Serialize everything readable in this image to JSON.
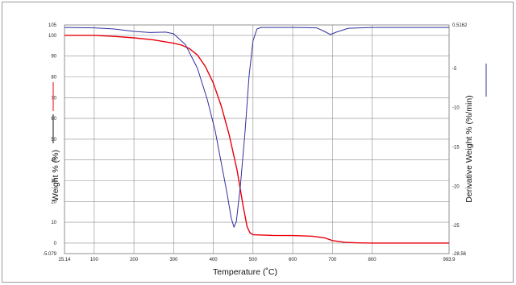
{
  "chart_data": {
    "type": "line",
    "title": "",
    "xlabel": "Temperature (˚C)",
    "ylabel_left": "Weight % (%)",
    "ylabel_right": "Derivative Weight % (%/min)",
    "xlim": [
      25.14,
      993.9
    ],
    "ylim_left": [
      -5.079,
      105
    ],
    "ylim_right": [
      -28.56,
      0.5162
    ],
    "x_tick_labels": [
      "25.14",
      "100",
      "200",
      "300",
      "400",
      "500",
      "600",
      "700",
      "800",
      "993.9"
    ],
    "x_tick_values": [
      25.14,
      100,
      200,
      300,
      400,
      500,
      600,
      700,
      800,
      993.9
    ],
    "y_left_tick_labels": [
      "-5.079",
      "0",
      "10",
      "20",
      "30",
      "40",
      "50",
      "60",
      "70",
      "80",
      "90",
      "100",
      "105"
    ],
    "y_left_tick_values": [
      -5.079,
      0,
      10,
      20,
      30,
      40,
      50,
      60,
      70,
      80,
      90,
      100,
      105
    ],
    "y_right_tick_labels": [
      "0.5162",
      "-5",
      "-10",
      "-15",
      "-20",
      "-25",
      "-28.56"
    ],
    "y_right_tick_values": [
      0.5162,
      -5,
      -10,
      -15,
      -20,
      -25,
      -28.56
    ],
    "grid": true,
    "series": [
      {
        "axis": "left",
        "color": "#e8000b",
        "values": [
          [
            25.14,
            100
          ],
          [
            100,
            100
          ],
          [
            150,
            99.5
          ],
          [
            200,
            98.8
          ],
          [
            250,
            97.8
          ],
          [
            300,
            96.2
          ],
          [
            320,
            95.3
          ],
          [
            340,
            93.6
          ],
          [
            360,
            90.5
          ],
          [
            380,
            85
          ],
          [
            400,
            77
          ],
          [
            420,
            66
          ],
          [
            440,
            52
          ],
          [
            460,
            35
          ],
          [
            475,
            18
          ],
          [
            485,
            8
          ],
          [
            492,
            5
          ],
          [
            500,
            4
          ],
          [
            550,
            3.7
          ],
          [
            600,
            3.6
          ],
          [
            650,
            3.3
          ],
          [
            680,
            2.5
          ],
          [
            700,
            1.2
          ],
          [
            730,
            0.4
          ],
          [
            760,
            0.1
          ],
          [
            800,
            0
          ],
          [
            993.9,
            0
          ]
        ]
      },
      {
        "axis": "right",
        "color": "#3030a0",
        "values": [
          [
            25.14,
            0.2
          ],
          [
            100,
            0.15
          ],
          [
            150,
            0
          ],
          [
            200,
            -0.3
          ],
          [
            240,
            -0.45
          ],
          [
            280,
            -0.4
          ],
          [
            300,
            -0.6
          ],
          [
            330,
            -2
          ],
          [
            360,
            -5
          ],
          [
            385,
            -9
          ],
          [
            405,
            -13
          ],
          [
            420,
            -17
          ],
          [
            435,
            -21
          ],
          [
            445,
            -24
          ],
          [
            452,
            -25.2
          ],
          [
            458,
            -24.5
          ],
          [
            468,
            -20
          ],
          [
            480,
            -13
          ],
          [
            490,
            -6
          ],
          [
            500,
            -1.5
          ],
          [
            510,
            0
          ],
          [
            520,
            0.2
          ],
          [
            600,
            0.2
          ],
          [
            660,
            0.15
          ],
          [
            680,
            -0.3
          ],
          [
            695,
            -0.7
          ],
          [
            710,
            -0.4
          ],
          [
            740,
            0.1
          ],
          [
            800,
            0.2
          ],
          [
            993.9,
            0.2
          ]
        ]
      }
    ]
  }
}
